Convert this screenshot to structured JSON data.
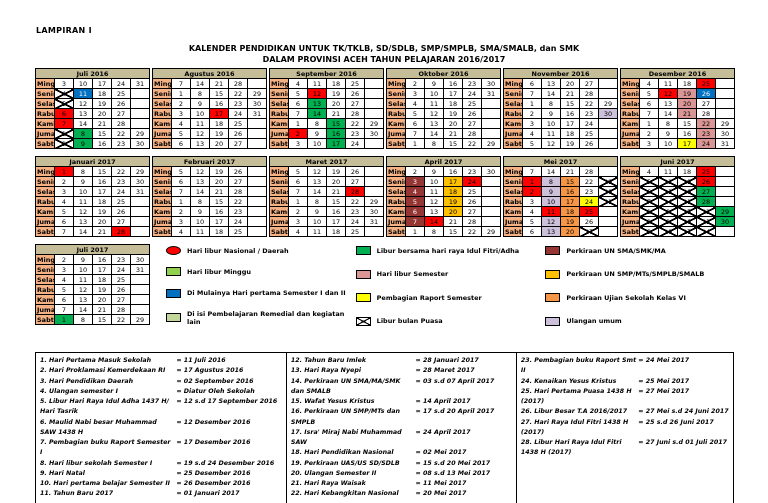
{
  "page": {
    "lampiran": "LAMPIRAN  I",
    "title_line1": "KALENDER PENDIDIKAN UNTUK TK/TKLB, SD/SDLB, SMP/SMPLB, SMA/SMALB, dan SMK",
    "title_line2": "DALAM PROVINSI ACEH TAHUN PELAJARAN 2016/2017"
  },
  "colors": {
    "nat": "#ff0000",
    "minggu_libur": "#92d050",
    "start": "#0070c0",
    "remedial": "#c4d79b",
    "fitri": "#00b050",
    "sem": "#d99694",
    "raport": "#ffff00",
    "unsma": "#963634",
    "unsmp": "#ffc000",
    "us6": "#f79646",
    "umum": "#ccc0da",
    "month_header": "#c4bd97",
    "weekday_label": "#f4b183"
  },
  "weekdays": [
    "Minggu",
    "Senin",
    "Selasa",
    "Rabu",
    "Kamis",
    "Jumat",
    "Sabtu"
  ],
  "months": [
    {
      "name": "Juli 2016",
      "rows": [
        [
          3,
          10,
          17,
          24,
          31
        ],
        [
          4,
          11,
          18,
          25,
          ""
        ],
        [
          5,
          12,
          19,
          26,
          ""
        ],
        [
          6,
          13,
          20,
          27,
          ""
        ],
        [
          7,
          14,
          21,
          28,
          ""
        ],
        [
          1,
          8,
          15,
          22,
          29
        ],
        [
          2,
          9,
          16,
          23,
          30
        ]
      ],
      "highlights": {
        "1": "puasa",
        "2": "puasa",
        "4": "puasa",
        "5": "puasa",
        "6": "nat",
        "7": "nat",
        "8": "fitri",
        "9": "fitri",
        "11": "start"
      }
    },
    {
      "name": "Agustus 2016",
      "rows": [
        [
          7,
          14,
          21,
          28,
          ""
        ],
        [
          1,
          8,
          15,
          22,
          29
        ],
        [
          2,
          9,
          16,
          23,
          30
        ],
        [
          3,
          10,
          17,
          24,
          31
        ],
        [
          4,
          11,
          18,
          25,
          ""
        ],
        [
          5,
          12,
          19,
          26,
          ""
        ],
        [
          6,
          13,
          20,
          27,
          ""
        ]
      ],
      "highlights": {
        "17": "nat"
      }
    },
    {
      "name": "September 2016",
      "rows": [
        [
          4,
          11,
          18,
          25,
          ""
        ],
        [
          5,
          12,
          19,
          26,
          ""
        ],
        [
          6,
          13,
          20,
          27,
          ""
        ],
        [
          7,
          14,
          21,
          28,
          ""
        ],
        [
          1,
          8,
          15,
          22,
          29
        ],
        [
          2,
          9,
          16,
          23,
          30
        ],
        [
          3,
          10,
          17,
          24,
          ""
        ]
      ],
      "highlights": {
        "2": "nat",
        "12": "nat",
        "13": "fitri",
        "14": "fitri",
        "15": "fitri",
        "16": "fitri",
        "17": "fitri"
      }
    },
    {
      "name": "Oktober 2016",
      "rows": [
        [
          2,
          9,
          16,
          23,
          30
        ],
        [
          3,
          10,
          17,
          24,
          31
        ],
        [
          4,
          11,
          18,
          25,
          ""
        ],
        [
          5,
          12,
          19,
          26,
          ""
        ],
        [
          6,
          13,
          20,
          27,
          ""
        ],
        [
          7,
          14,
          21,
          28,
          ""
        ],
        [
          1,
          8,
          15,
          22,
          29
        ]
      ],
      "highlights": {}
    },
    {
      "name": "November 2016",
      "rows": [
        [
          6,
          13,
          20,
          27,
          ""
        ],
        [
          7,
          14,
          21,
          28,
          ""
        ],
        [
          1,
          8,
          15,
          22,
          29
        ],
        [
          2,
          9,
          16,
          23,
          30
        ],
        [
          3,
          10,
          17,
          24,
          ""
        ],
        [
          4,
          11,
          18,
          25,
          ""
        ],
        [
          5,
          12,
          19,
          26,
          ""
        ]
      ],
      "highlights": {
        "30": "umum"
      }
    },
    {
      "name": "Desember 2016",
      "rows": [
        [
          4,
          11,
          18,
          25,
          ""
        ],
        [
          5,
          12,
          19,
          26,
          ""
        ],
        [
          6,
          13,
          20,
          27,
          ""
        ],
        [
          7,
          14,
          21,
          28,
          ""
        ],
        [
          1,
          8,
          15,
          22,
          29
        ],
        [
          2,
          9,
          16,
          23,
          30
        ],
        [
          3,
          10,
          17,
          24,
          31
        ]
      ],
      "highlights": {
        "12": "nat",
        "17": "raport",
        "19": "sem",
        "20": "sem",
        "21": "sem",
        "22": "sem",
        "23": "sem",
        "24": "sem",
        "25": "nat",
        "26": "start"
      }
    },
    {
      "name": "Januari 2017",
      "rows": [
        [
          1,
          8,
          15,
          22,
          29
        ],
        [
          2,
          9,
          16,
          23,
          30
        ],
        [
          3,
          10,
          17,
          24,
          31
        ],
        [
          4,
          11,
          18,
          25,
          ""
        ],
        [
          5,
          12,
          19,
          26,
          ""
        ],
        [
          6,
          13,
          20,
          27,
          ""
        ],
        [
          7,
          14,
          21,
          28,
          ""
        ]
      ],
      "highlights": {
        "1": "nat",
        "28": "nat"
      }
    },
    {
      "name": "Februari 2017",
      "rows": [
        [
          5,
          12,
          19,
          26,
          ""
        ],
        [
          6,
          13,
          20,
          27,
          ""
        ],
        [
          7,
          14,
          21,
          28,
          ""
        ],
        [
          1,
          8,
          15,
          22,
          ""
        ],
        [
          2,
          9,
          16,
          23,
          ""
        ],
        [
          3,
          10,
          17,
          24,
          ""
        ],
        [
          4,
          11,
          18,
          25,
          ""
        ]
      ],
      "highlights": {}
    },
    {
      "name": "Maret 2017",
      "rows": [
        [
          5,
          12,
          19,
          26,
          ""
        ],
        [
          6,
          13,
          20,
          27,
          ""
        ],
        [
          7,
          14,
          21,
          28,
          ""
        ],
        [
          1,
          8,
          15,
          22,
          29
        ],
        [
          2,
          9,
          16,
          23,
          30
        ],
        [
          3,
          10,
          17,
          24,
          31
        ],
        [
          4,
          11,
          18,
          25,
          ""
        ]
      ],
      "highlights": {
        "28": "nat"
      }
    },
    {
      "name": "April 2017",
      "rows": [
        [
          2,
          9,
          16,
          23,
          30
        ],
        [
          3,
          10,
          17,
          24,
          ""
        ],
        [
          4,
          11,
          18,
          25,
          ""
        ],
        [
          5,
          12,
          19,
          26,
          ""
        ],
        [
          6,
          13,
          20,
          27,
          ""
        ],
        [
          7,
          14,
          21,
          28,
          ""
        ],
        [
          1,
          8,
          15,
          22,
          29
        ]
      ],
      "highlights": {
        "3": "unsma",
        "4": "unsma",
        "5": "unsma",
        "6": "unsma",
        "7": "unsma",
        "14": "nat",
        "17": "unsmp",
        "18": "unsmp",
        "19": "unsmp",
        "20": "unsmp",
        "24": "nat"
      }
    },
    {
      "name": "Mei 2017",
      "rows": [
        [
          7,
          14,
          21,
          28,
          ""
        ],
        [
          1,
          8,
          15,
          22,
          29
        ],
        [
          2,
          9,
          16,
          23,
          30
        ],
        [
          3,
          10,
          17,
          24,
          31
        ],
        [
          4,
          11,
          18,
          25,
          ""
        ],
        [
          5,
          12,
          19,
          26,
          ""
        ],
        [
          6,
          13,
          20,
          27,
          ""
        ]
      ],
      "highlights": {
        "1": "nat",
        "2": "nat",
        "8": "umum",
        "9": "umum",
        "10": "umum",
        "11": "nat",
        "12": "umum",
        "13": "umum",
        "15": "us6",
        "16": "us6",
        "17": "us6",
        "18": "us6",
        "19": "us6",
        "20": "us6",
        "24": "raport",
        "25": "nat",
        "27": "puasa",
        "29": "puasa",
        "30": "puasa",
        "31": "puasa"
      }
    },
    {
      "name": "Juni 2017",
      "rows": [
        [
          4,
          11,
          18,
          25,
          ""
        ],
        [
          5,
          12,
          19,
          26,
          ""
        ],
        [
          6,
          13,
          20,
          27,
          ""
        ],
        [
          7,
          14,
          21,
          28,
          ""
        ],
        [
          1,
          8,
          15,
          22,
          29
        ],
        [
          2,
          9,
          16,
          23,
          30
        ],
        [
          3,
          10,
          17,
          24,
          ""
        ]
      ],
      "highlights": {
        "1": "puasa",
        "2": "puasa",
        "3": "puasa",
        "5": "puasa",
        "6": "puasa",
        "7": "puasa",
        "8": "puasa",
        "9": "puasa",
        "10": "puasa",
        "12": "puasa",
        "13": "puasa",
        "14": "puasa",
        "15": "puasa",
        "16": "puasa",
        "17": "puasa",
        "19": "puasa",
        "20": "puasa",
        "21": "puasa",
        "22": "puasa",
        "23": "puasa",
        "24": "puasa",
        "25": "nat",
        "26": "nat",
        "27": "fitri",
        "28": "fitri",
        "29": "fitri",
        "30": "fitri"
      }
    },
    {
      "name": "Juli 2017",
      "rows": [
        [
          2,
          9,
          16,
          23,
          30
        ],
        [
          3,
          10,
          17,
          24,
          31
        ],
        [
          4,
          11,
          18,
          25,
          ""
        ],
        [
          5,
          12,
          19,
          26,
          ""
        ],
        [
          6,
          13,
          20,
          27,
          ""
        ],
        [
          7,
          14,
          21,
          28,
          ""
        ],
        [
          1,
          8,
          15,
          22,
          29
        ]
      ],
      "highlights": {
        "1": "fitri"
      }
    }
  ],
  "legend": [
    {
      "col": 1,
      "key": "nat",
      "shape": "ellipse",
      "label": "Hari libur Nasional / Daerah"
    },
    {
      "col": 1,
      "key": "minggu_libur",
      "shape": "rect",
      "label": "Hari libur Minggu"
    },
    {
      "col": 1,
      "key": "start",
      "shape": "rect",
      "label": "Di Mulainya Hari pertama Semester I dan II"
    },
    {
      "col": 1,
      "key": "remedial",
      "shape": "rect",
      "label": "Di isi Pembelajaran Remedial dan kegiatan lain"
    },
    {
      "col": 2,
      "key": "fitri",
      "shape": "rect",
      "label": "Libur bersama hari raya Idul Fitri/Adha"
    },
    {
      "col": 2,
      "key": "sem",
      "shape": "rect",
      "label": "Hari libur Semester"
    },
    {
      "col": 2,
      "key": "raport",
      "shape": "rect",
      "label": "Pembagian Raport Semester"
    },
    {
      "col": 2,
      "key": "puasa",
      "shape": "xbox",
      "label": "Libur bulan Puasa"
    },
    {
      "col": 3,
      "key": "unsma",
      "shape": "rect",
      "label": "Perkiraan UN  SMA/SMK/MA"
    },
    {
      "col": 3,
      "key": "unsmp",
      "shape": "rect",
      "label": "Perkiraan UN SMP/MTs/SMPLB/SMALB"
    },
    {
      "col": 3,
      "key": "us6",
      "shape": "rect",
      "label": "Perkiraan Ujian Sekolah Kelas VI"
    },
    {
      "col": 3,
      "key": "umum",
      "shape": "rect",
      "label": "Ulangan umum"
    }
  ],
  "events": {
    "col1": [
      {
        "no": "1.",
        "label": "Hari Pertama Masuk Sekolah",
        "value": "= 11 Juli 2016"
      },
      {
        "no": "2.",
        "label": "Hari Proklamasi Kemerdekaan RI",
        "value": "= 17 Agustus 2016"
      },
      {
        "no": "3.",
        "label": "Hari Pendidikan Daerah",
        "value": "= 02 September 2016"
      },
      {
        "no": "4.",
        "label": "Ulangan semester I",
        "value": "= Diatur Oleh Sekolah"
      },
      {
        "no": "5.",
        "label": "Libur Hari Raya Idul Adha 1437 H/ Hari Tasrik",
        "value": "= 12 s.d 17 September 2016"
      },
      {
        "no": "6.",
        "label": "Maulid Nabi besar Muhammad SAW 1438 H",
        "value": "= 12 Desember 2016"
      },
      {
        "no": "7.",
        "label": "Pembagian buku Raport Semester I",
        "value": "= 17 Desember 2016"
      },
      {
        "no": "8.",
        "label": "Hari libur sekolah Semester I",
        "value": "= 19 s.d 24 Desember 2016"
      },
      {
        "no": "9.",
        "label": "Hari Natal",
        "value": "= 25 Desember 2016"
      },
      {
        "no": "10.",
        "label": "Hari pertama belajar Semester II",
        "value": "= 26 Desember 2016"
      },
      {
        "no": "11.",
        "label": "Tahun Baru 2017",
        "value": "= 01 Januari 2017"
      }
    ],
    "col2": [
      {
        "no": "12.",
        "label": "Tahun Baru Imlek",
        "value": "= 28 Januari 2017"
      },
      {
        "no": "13.",
        "label": "Hari Raya Nyepi",
        "value": "= 28 Maret 2017"
      },
      {
        "no": "14.",
        "label": "Perkiraan UN SMA/MA/SMK dan SMALB",
        "value": "= 03 s.d 07 April 2017"
      },
      {
        "no": "15.",
        "label": "Wafat Yesus Kristus",
        "value": "= 14 April 2017"
      },
      {
        "no": "16.",
        "label": "Perkiraan UN SMP/MTs dan SMPLB",
        "value": "= 17 s.d 20 April 2017"
      },
      {
        "no": "17.",
        "label": "Isra' Miraj Nabi Muhammad SAW",
        "value": "= 24 April 2017"
      },
      {
        "no": "18.",
        "label": "Hari Pendidikan Nasional",
        "value": "= 02 Mei 2017"
      },
      {
        "no": "19.",
        "label": "Perkiraan UAS/US SD/SDLB",
        "value": "= 15 s.d 20 Mei 2017"
      },
      {
        "no": "20.",
        "label": "Ulangan Semester II",
        "value": "= 08 s.d 13 Mei 2017"
      },
      {
        "no": "21.",
        "label": "Hari Raya Waisak",
        "value": "= 11 Mei 2017"
      },
      {
        "no": "22.",
        "label": "Hari Kebangkitan Nasional",
        "value": "= 20 Mei 2017"
      }
    ],
    "col3": [
      {
        "no": "23.",
        "label": "Pembagian buku Raport Smt II",
        "value": "= 24 Mei 2017"
      },
      {
        "no": "24.",
        "label": "Kenaikan Yesus Kristus",
        "value": "= 25 Mei 2017"
      },
      {
        "no": "25.",
        "label": "Hari Pertama Puasa 1438 H (2017)",
        "value": "= 27 Mei 2017"
      },
      {
        "no": "26.",
        "label": "Libur Besar T.A 2016/2017",
        "value": "= 27 Mei s.d 24 Juni 2017"
      },
      {
        "no": "27.",
        "label": "Hari Raya Idul Fitri 1438 H (2017)",
        "value": "= 25 s.d 26 Juni 2017"
      },
      {
        "no": "28.",
        "label": "Libur Hari Raya Idul Fitri 1438 H (2017)",
        "value": "= 27 Juni s.d 01 Juli 2017"
      }
    ]
  }
}
